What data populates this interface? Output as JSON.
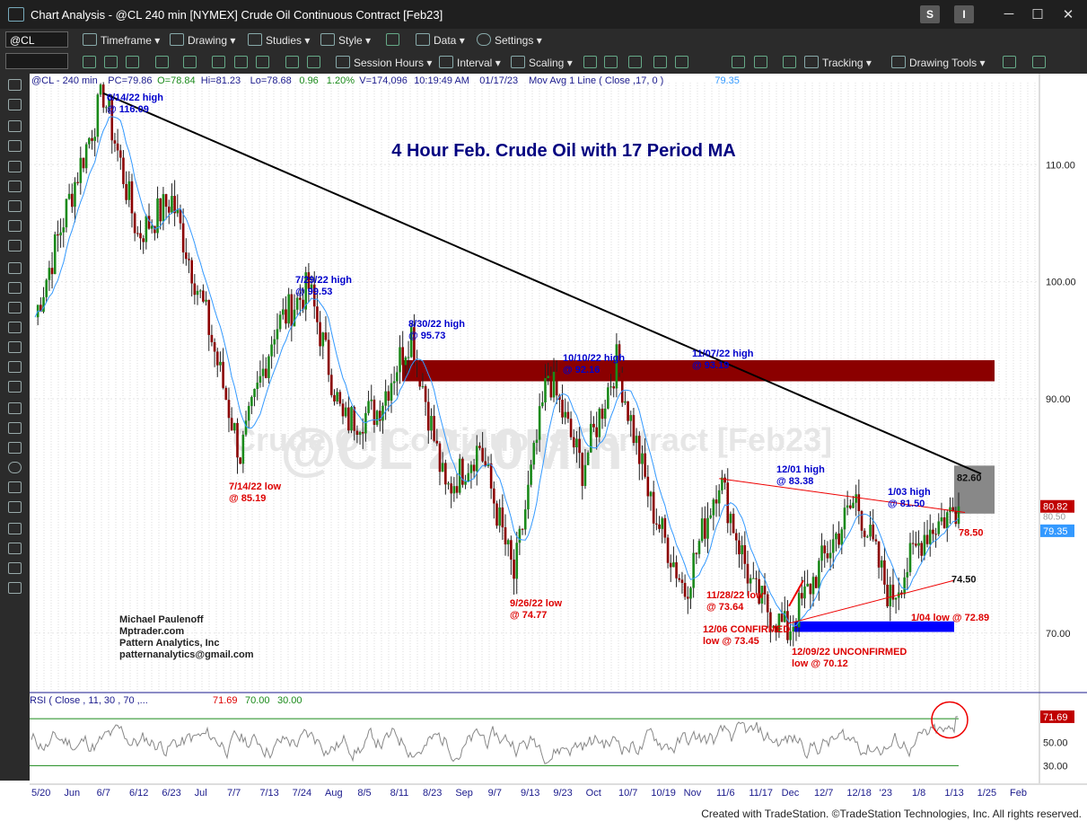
{
  "window": {
    "title": "Chart Analysis - @CL 240 min [NYMEX] Crude Oil Continuous Contract [Feb23]",
    "btn_s": "S",
    "btn_i": "I",
    "min": "─",
    "max": "☐",
    "close": "✕"
  },
  "toolbar1": {
    "symbol": "@CL",
    "timeframe": "Timeframe",
    "drawing": "Drawing",
    "studies": "Studies",
    "style": "Style",
    "data": "Data",
    "settings": "Settings"
  },
  "toolbar2": {
    "session_hours": "Session Hours",
    "interval": "Interval",
    "scaling": "Scaling",
    "tracking": "Tracking",
    "drawing_tools": "Drawing Tools"
  },
  "status_line": {
    "sym": "@CL - 240 min",
    "pc": "PC=79.86",
    "o": "O=78.84",
    "hi": "Hi=81.23",
    "lo": "Lo=78.68",
    "chg": "0.96",
    "pct": "1.20%",
    "v": "V=174,096",
    "time": "10:19:49 AM",
    "date": "01/17/23",
    "ma": "Mov Avg 1 Line (  Close ,17,  0 )",
    "ma_val": "79.35"
  },
  "chart_data": {
    "type": "line",
    "title": "4 Hour Feb. Crude Oil with 17 Period MA",
    "watermark1": "@CL 240Min",
    "watermark2": "Crude Oil Continuous Contract [Feb23]",
    "ylim": [
      65,
      117
    ],
    "y_ticks": [
      "110.00",
      "100.00",
      "90.00",
      "70.00"
    ],
    "x_labels": [
      "5/20",
      "Jun",
      "6/7",
      "6/12",
      "6/23",
      "Jul",
      "7/7",
      "7/13",
      "7/24",
      "Aug",
      "8/5",
      "8/11",
      "8/23",
      "Sep",
      "9/7",
      "9/13",
      "9/23",
      "Oct",
      "10/7",
      "10/19",
      "Nov",
      "11/6",
      "11/17",
      "Dec",
      "12/7",
      "12/18",
      "'23",
      "1/8",
      "1/13",
      "1/25",
      "Feb"
    ],
    "price_series": [
      {
        "date": "5/20",
        "close": 97
      },
      {
        "date": "Jun",
        "close": 107
      },
      {
        "date": "6/14/22",
        "close": 116.09
      },
      {
        "date": "6/23",
        "close": 104
      },
      {
        "date": "Jul",
        "close": 107
      },
      {
        "date": "7/7",
        "close": 97
      },
      {
        "date": "7/14/22",
        "close": 85.19
      },
      {
        "date": "7/24",
        "close": 96
      },
      {
        "date": "7/29/22",
        "close": 99.53
      },
      {
        "date": "8/5",
        "close": 88
      },
      {
        "date": "8/23",
        "close": 89
      },
      {
        "date": "8/30/22",
        "close": 95.73
      },
      {
        "date": "9/7",
        "close": 82
      },
      {
        "date": "9/13",
        "close": 86
      },
      {
        "date": "9/26/22",
        "close": 74.77
      },
      {
        "date": "10/10/22",
        "close": 92.16
      },
      {
        "date": "10/19",
        "close": 84
      },
      {
        "date": "11/07/22",
        "close": 93.19
      },
      {
        "date": "11/17",
        "close": 81
      },
      {
        "date": "11/28/22",
        "close": 73.64
      },
      {
        "date": "12/01/22",
        "close": 83.38
      },
      {
        "date": "12/06/22",
        "close": 73.45
      },
      {
        "date": "12/09/22",
        "close": 70.12
      },
      {
        "date": "12/18",
        "close": 76
      },
      {
        "date": "1/03/23",
        "close": 81.5
      },
      {
        "date": "1/04/23",
        "close": 72.89
      },
      {
        "date": "1/13",
        "close": 78.5
      },
      {
        "date": "1/17/23",
        "close": 80.82
      }
    ],
    "ma_last": 79.35,
    "price_tags": {
      "last": "80.82",
      "ma": "79.35",
      "hidden": "80.50"
    },
    "resistance_zone": [
      91.5,
      93.3
    ],
    "support_zone": [
      70.1,
      71.0
    ],
    "level_labels": [
      "82.60",
      "78.50",
      "74.50"
    ],
    "annotations": [
      {
        "text": "6/14/22 high\n@ 116.09",
        "color": "#0000cc"
      },
      {
        "text": "7/29/22 high\n@ 99.53",
        "color": "#0000cc"
      },
      {
        "text": "8/30/22 high\n@ 95.73",
        "color": "#0000cc"
      },
      {
        "text": "10/10/22 high\n@ 92.16",
        "color": "#0000cc"
      },
      {
        "text": "11/07/22 high\n@ 93.19",
        "color": "#0000cc"
      },
      {
        "text": "12/01 high\n@ 83.38",
        "color": "#0000cc"
      },
      {
        "text": "1/03 high\n@ 81.50",
        "color": "#0000cc"
      },
      {
        "text": "7/14/22 low\n@ 85.19",
        "color": "#dd0000"
      },
      {
        "text": "9/26/22 low\n@ 74.77",
        "color": "#dd0000"
      },
      {
        "text": "11/28/22 low\n@ 73.64",
        "color": "#dd0000"
      },
      {
        "text": "12/06 CONFIRMED\nlow @ 73.45",
        "color": "#dd0000"
      },
      {
        "text": "12/09/22 UNCONFIRMED\nlow @ 70.12",
        "color": "#dd0000"
      },
      {
        "text": "1/04 low @ 72.89",
        "color": "#dd0000"
      }
    ],
    "author": [
      "Michael Paulenoff",
      "Mptrader.com",
      "Pattern Analytics, Inc",
      "patternanalytics@gmail.com"
    ],
    "rsi": {
      "label": "RSI (  Close , 11,  30 ,  70 ,...",
      "value": "71.69",
      "ob": "70.00",
      "os": "30.00",
      "ticks": [
        "71.69",
        "50.00",
        "30.00"
      ],
      "ylim": [
        15,
        90
      ],
      "last": 71.69
    }
  },
  "colors": {
    "up": "#1a8a1a",
    "down": "#8b0000",
    "ma": "#3399ff",
    "rsi": "#888888",
    "resistance": "#8b0000",
    "support": "#0000ff"
  },
  "footer": "Created with TradeStation. ©TradeStation Technologies, Inc. All rights reserved."
}
